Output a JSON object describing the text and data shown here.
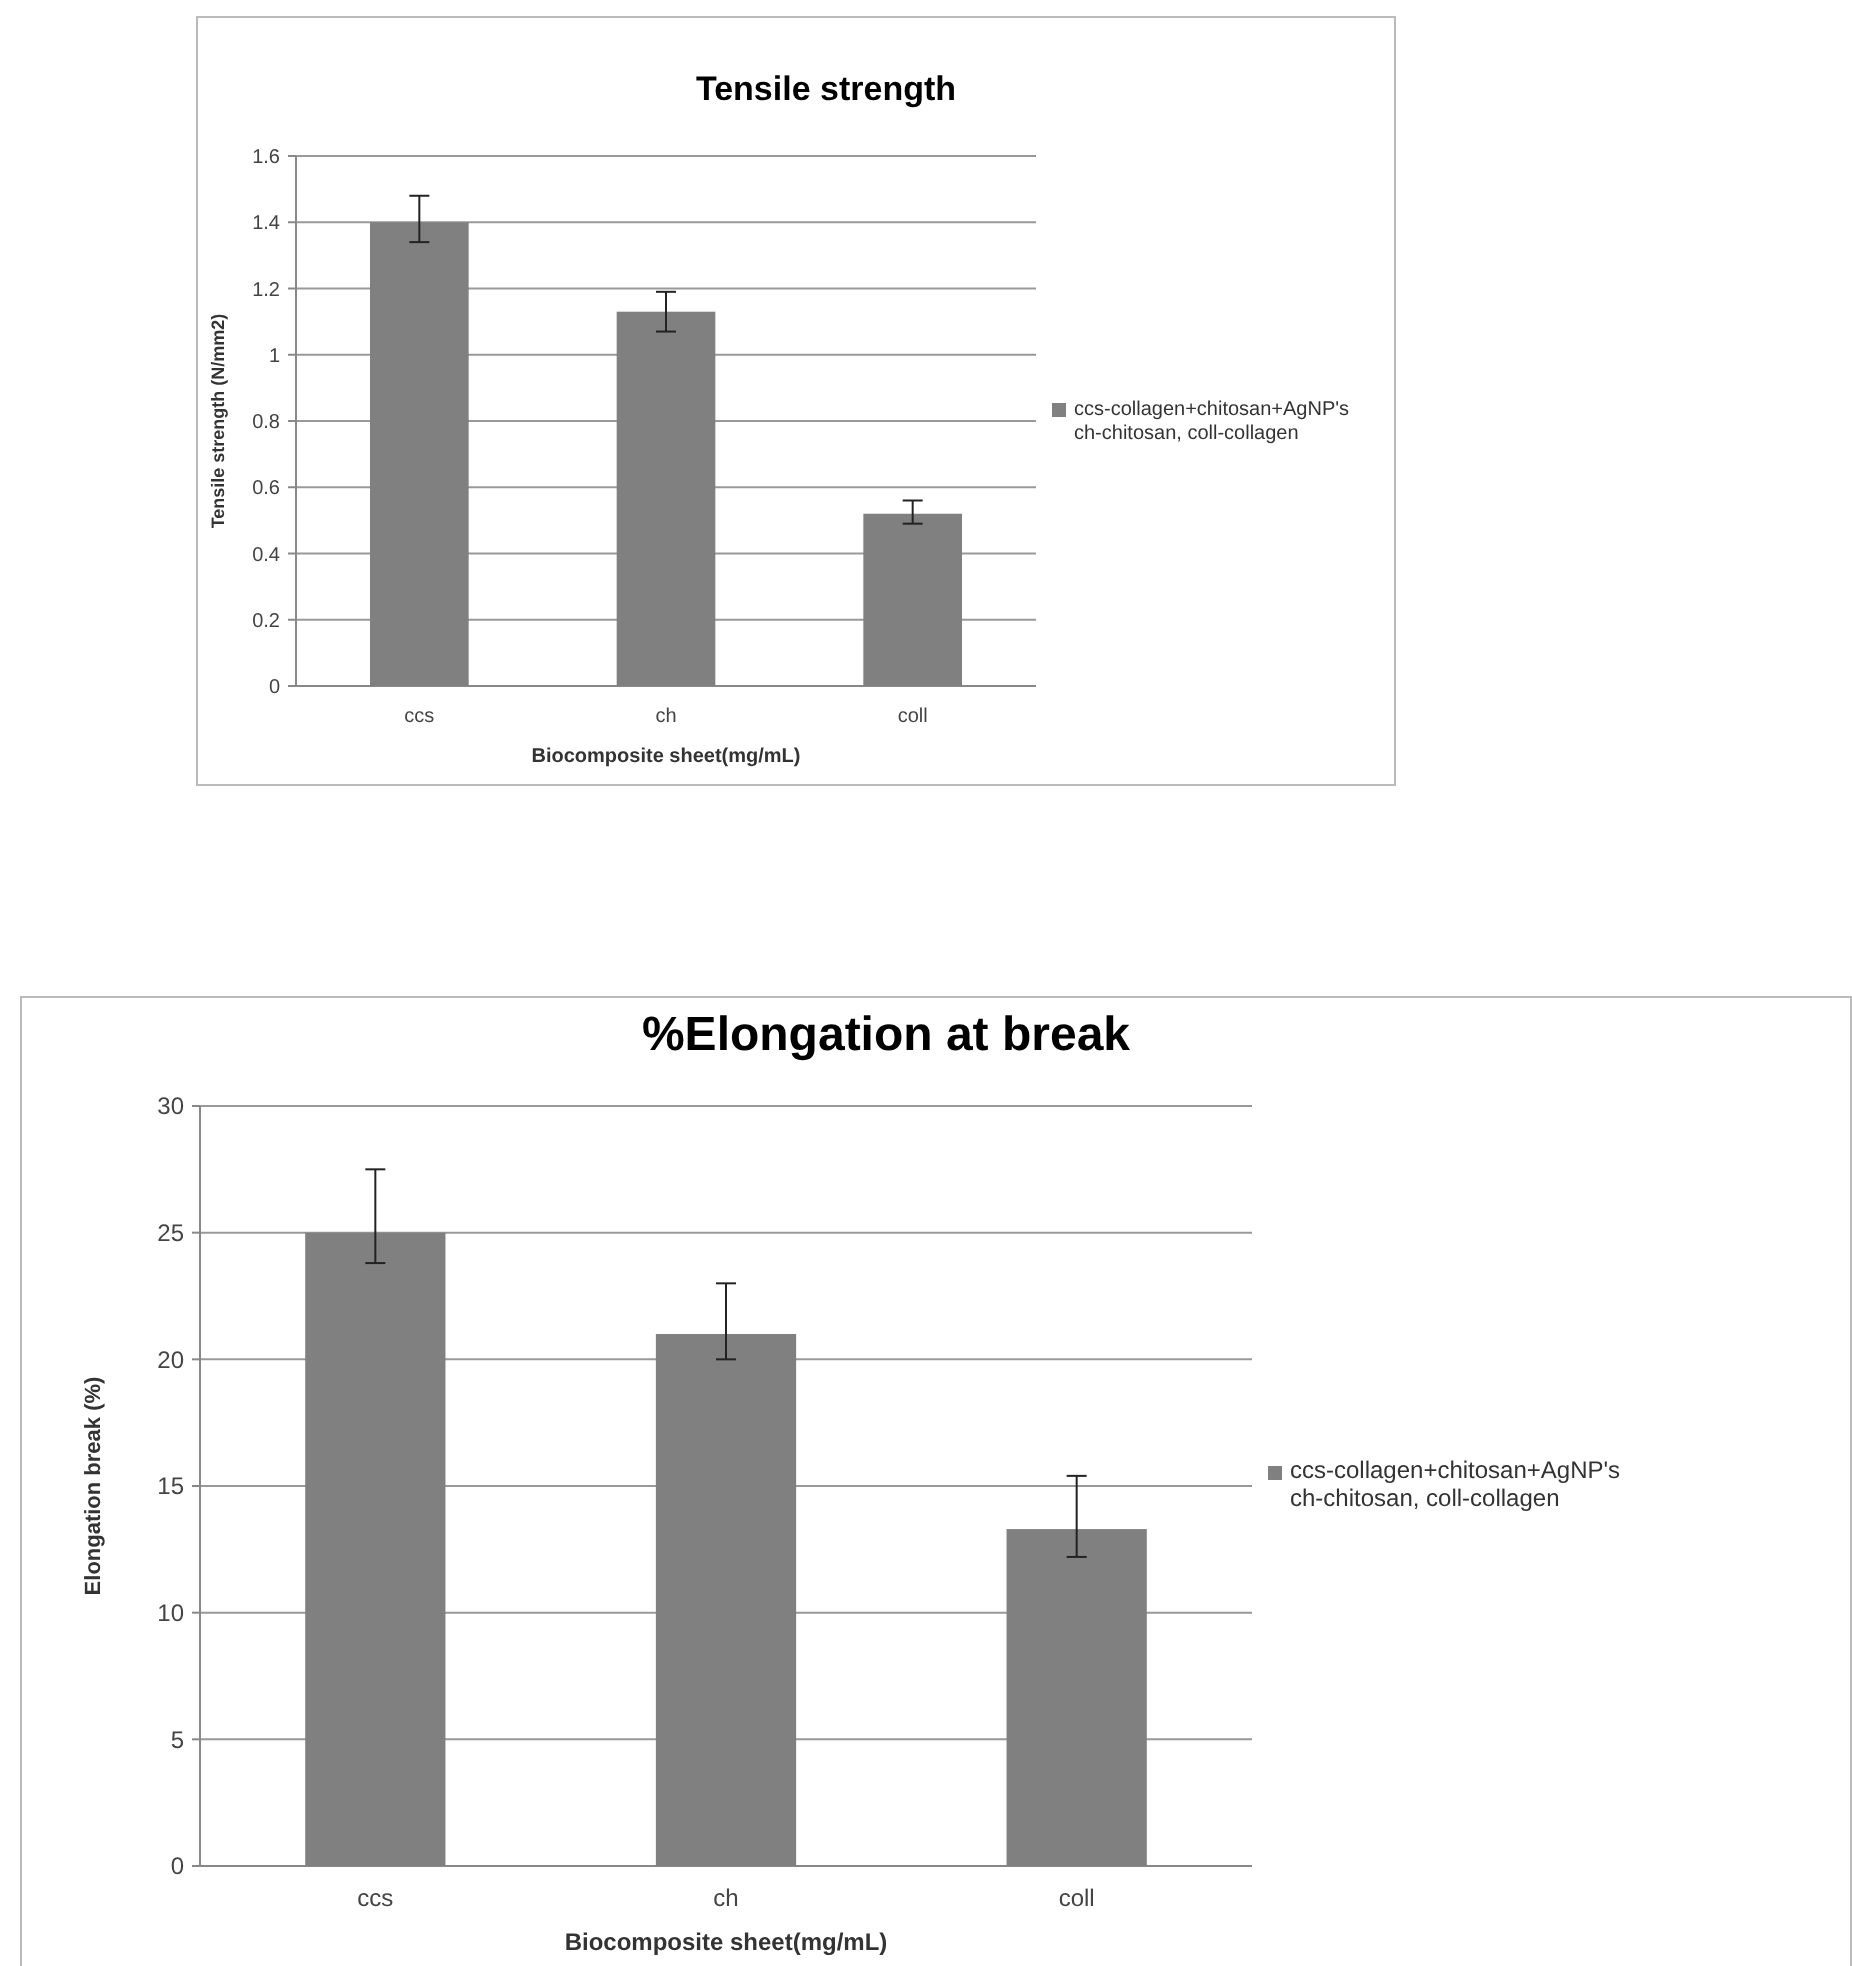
{
  "chart_data": [
    {
      "type": "bar",
      "title": "Tensile strength",
      "xlabel": "Biocomposite sheet(mg/mL)",
      "ylabel": "Tensile strength (N/mm2)",
      "categories": [
        "ccs",
        "ch",
        "coll"
      ],
      "series": [
        {
          "name": "ccs-collagen+chitosan+AgNP's ch-chitosan, coll-collagen",
          "color": "#808080",
          "values": [
            1.4,
            1.13,
            0.52
          ],
          "errors": [
            [
              1.34,
              1.48
            ],
            [
              1.07,
              1.19
            ],
            [
              0.49,
              0.56
            ]
          ]
        }
      ],
      "ylim": [
        0,
        1.6
      ],
      "yticks": [
        0,
        0.2,
        0.4,
        0.6,
        0.8,
        1,
        1.2,
        1.4,
        1.6
      ],
      "grid": "y",
      "legend": "right"
    },
    {
      "type": "bar",
      "title": "%Elongation at break",
      "xlabel": "Biocomposite sheet(mg/mL)",
      "ylabel": "Elongation break (%)",
      "categories": [
        "ccs",
        "ch",
        "coll"
      ],
      "series": [
        {
          "name": "ccs-collagen+chitosan+AgNP's ch-chitosan, coll-collagen",
          "color": "#808080",
          "values": [
            25,
            21,
            13.3
          ],
          "errors": [
            [
              23.8,
              27.5
            ],
            [
              20,
              23
            ],
            [
              12.2,
              15.4
            ]
          ]
        }
      ],
      "ylim": [
        0,
        30
      ],
      "yticks": [
        0,
        5,
        10,
        15,
        20,
        25,
        30
      ],
      "grid": "y",
      "legend": "right"
    }
  ]
}
